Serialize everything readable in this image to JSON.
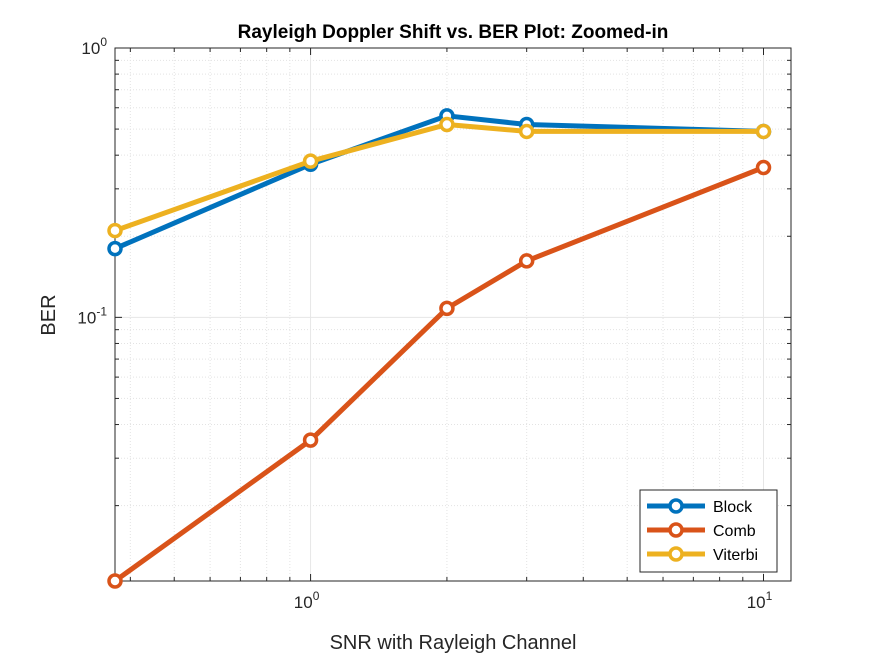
{
  "chart_data": {
    "type": "line",
    "title": "Rayleigh Doppler Shift vs. BER Plot: Zoomed-in",
    "xlabel": "SNR with Rayleigh Channel",
    "ylabel": "BER",
    "xscale": "log",
    "yscale": "log",
    "xlim": [
      0.37,
      11.5
    ],
    "ylim": [
      0.0105,
      1.0
    ],
    "x": [
      0.37,
      1,
      2,
      3,
      10
    ],
    "series": [
      {
        "name": "Block",
        "color": "#0072BD",
        "values": [
          0.18,
          0.37,
          0.56,
          0.52,
          0.49
        ]
      },
      {
        "name": "Comb",
        "color": "#D95319",
        "values": [
          0.0105,
          0.035,
          0.108,
          0.162,
          0.36
        ]
      },
      {
        "name": "Viterbi",
        "color": "#EDB120",
        "values": [
          0.21,
          0.38,
          0.52,
          0.49,
          0.49
        ]
      }
    ],
    "x_ticks": [
      {
        "base": "10",
        "exp": "0",
        "value": 1
      },
      {
        "base": "10",
        "exp": "1",
        "value": 10
      }
    ],
    "y_ticks": [
      {
        "base": "10",
        "exp": "0",
        "value": 1
      },
      {
        "base": "10",
        "exp": "-1",
        "value": 0.1
      }
    ],
    "grid": true,
    "minor_grid": true,
    "legend_position": "bottom-right"
  }
}
